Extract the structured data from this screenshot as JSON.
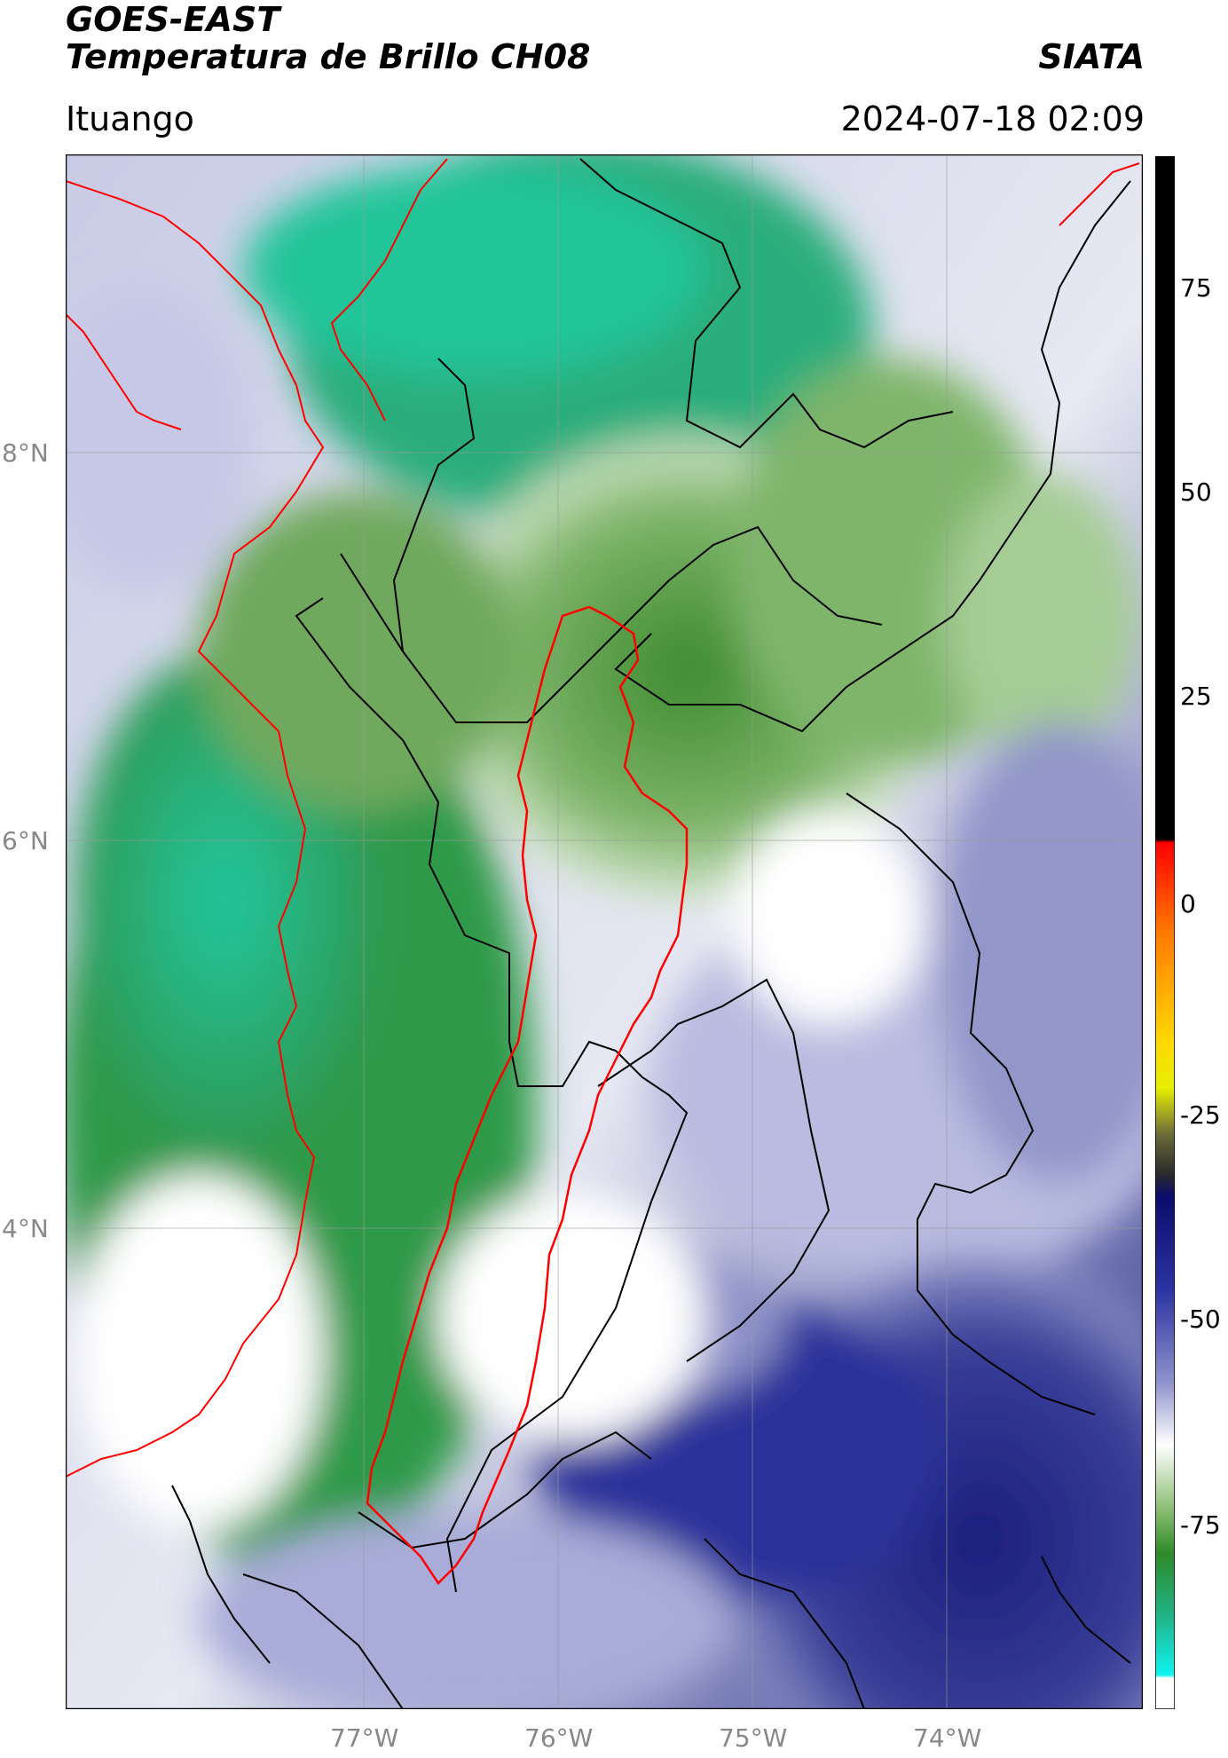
{
  "header": {
    "satellite": "GOES-EAST",
    "product": "Temperatura de Brillo CH08",
    "brand": "SIATA",
    "location": "Ituango",
    "datetime": "2024-07-18 02:09"
  },
  "map": {
    "lat_labels": [
      "8°N",
      "6°N",
      "4°N"
    ],
    "lon_labels": [
      "77°W",
      "76°W",
      "75°W",
      "74°W"
    ],
    "colors": {
      "green_dark": "#3a8a2a",
      "teal": "#1fbf96",
      "white": "#ffffff",
      "blue_dark": "#1a1f7a",
      "border_black": "#000000",
      "border_red": "#ff0000"
    }
  },
  "colorbar": {
    "ticks": [
      "75",
      "50",
      "25",
      "0",
      "-25",
      "-50",
      "-75"
    ]
  }
}
